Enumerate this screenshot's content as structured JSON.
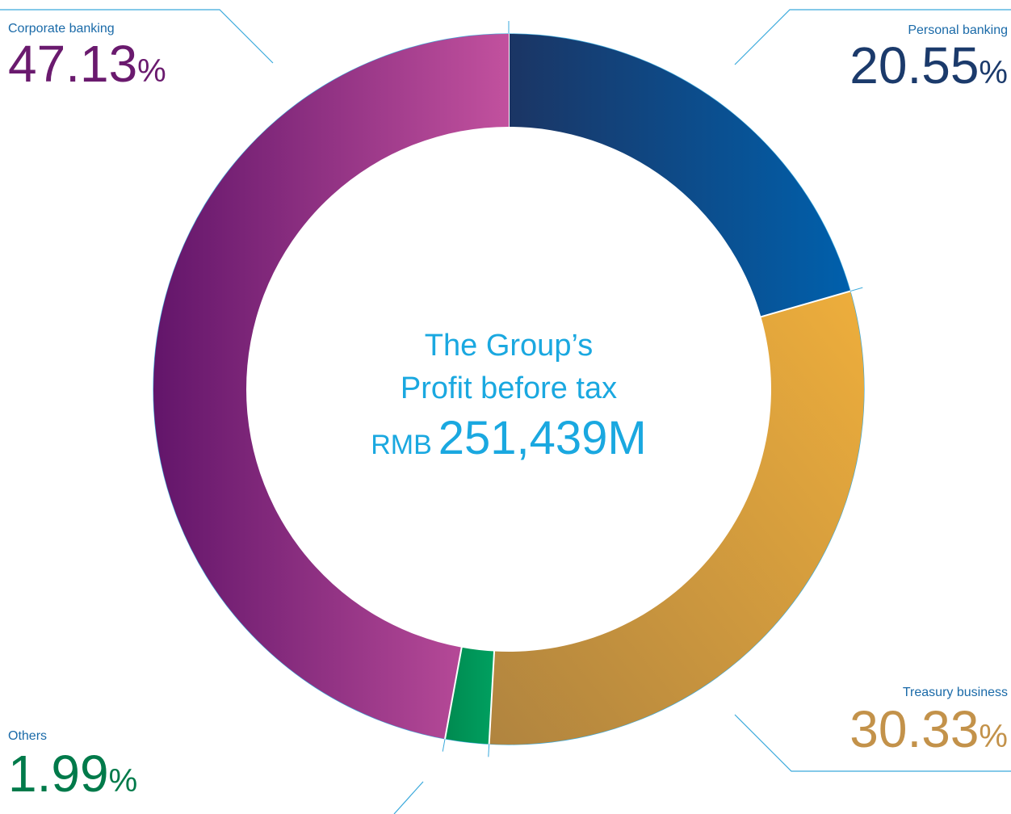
{
  "chart_data": {
    "type": "donut",
    "center_text": [
      "The Group’s",
      "Profit before tax"
    ],
    "total_prefix": "RMB",
    "total": "251,439M",
    "categories": [
      "Personal banking",
      "Treasury business",
      "Others",
      "Corporate banking"
    ],
    "values": [
      20.55,
      30.33,
      1.99,
      47.13
    ],
    "value_unit": "%",
    "colors": [
      "#1b3a6b",
      "#c3924a",
      "#007a4a",
      "#6a1a6e"
    ]
  }
}
